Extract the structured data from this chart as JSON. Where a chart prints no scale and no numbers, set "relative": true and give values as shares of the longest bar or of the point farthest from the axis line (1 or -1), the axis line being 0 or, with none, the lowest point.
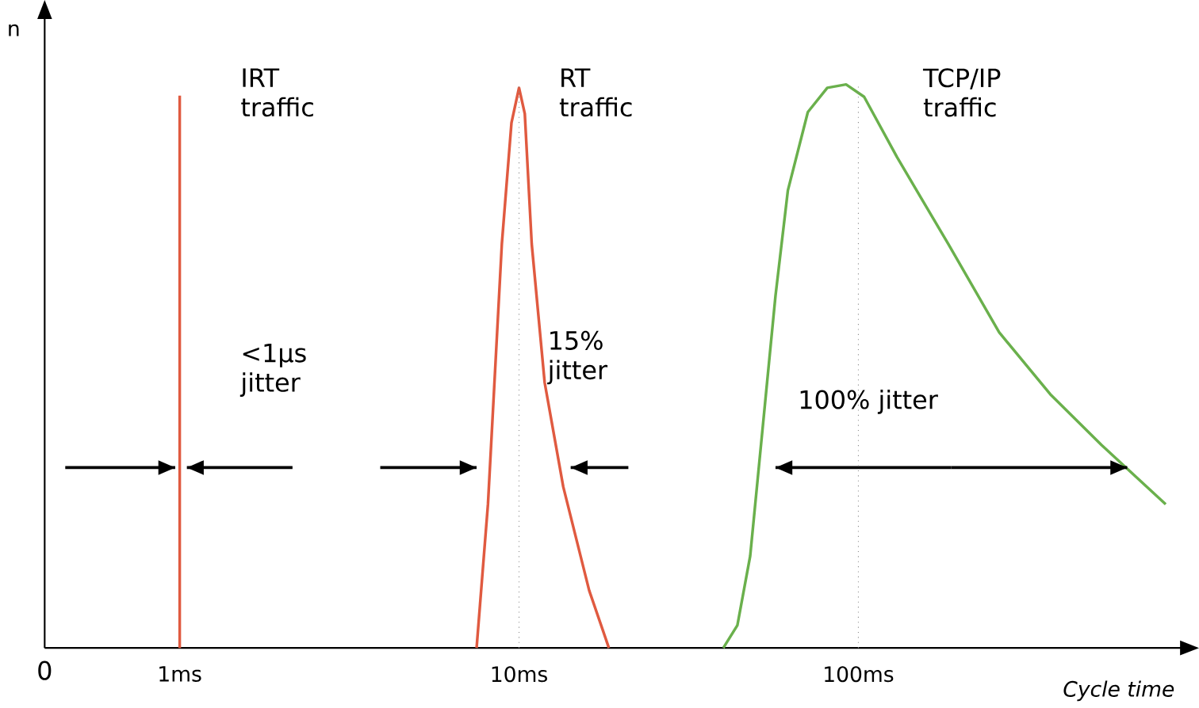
{
  "chart_data": {
    "type": "line",
    "relative": true,
    "log": "x",
    "xlabel": "Cycle time",
    "ylabel": "n",
    "xlim": [
      0.4,
      900
    ],
    "xticks": [
      {
        "value": 1,
        "label": "1ms"
      },
      {
        "value": 10,
        "label": "10ms"
      },
      {
        "value": 100,
        "label": "100ms"
      }
    ],
    "series": [
      {
        "color": "#e05a40",
        "x": [
          1,
          1
        ],
        "values": [
          0,
          0.98
        ]
      },
      {
        "color": "#e05a40",
        "x": [
          7.5,
          8.1,
          8.9,
          9.5,
          10,
          10.4,
          10.9,
          11.9,
          13.5,
          16.1,
          18.4
        ],
        "values": [
          0,
          0.255,
          0.717,
          0.932,
          0.994,
          0.948,
          0.717,
          0.471,
          0.286,
          0.102,
          0
        ]
      },
      {
        "color": "#6ab04c",
        "x": [
          40,
          44,
          48,
          52,
          57,
          62,
          71,
          81,
          92,
          104,
          130,
          184,
          260,
          368,
          521,
          805
        ],
        "values": [
          0,
          0.04,
          0.163,
          0.378,
          0.625,
          0.812,
          0.951,
          0.994,
          1.0,
          0.978,
          0.871,
          0.717,
          0.56,
          0.45,
          0.36,
          0.255
        ]
      },
      {
        "color": "#000000",
        "x": [
          0.46,
          0.97
        ],
        "values": [
          0.32,
          0.32
        ]
      },
      {
        "color": "#000000",
        "x": [
          2.15,
          1.05
        ],
        "values": [
          0.32,
          0.32
        ]
      },
      {
        "color": "#000000",
        "x": [
          3.9,
          7.5
        ],
        "values": [
          0.32,
          0.32
        ]
      },
      {
        "color": "#000000",
        "x": [
          21,
          14.2
        ],
        "values": [
          0.32,
          0.32
        ]
      },
      {
        "color": "#000000",
        "x": [
          188,
          57
        ],
        "values": [
          0.32,
          0.32
        ]
      },
      {
        "color": "#000000",
        "x": [
          188,
          620
        ],
        "values": [
          0.32,
          0.32
        ]
      }
    ],
    "ref_lines": [
      {
        "axis": "x",
        "value": 10,
        "color": "#888888",
        "line_style": "dotted"
      },
      {
        "axis": "x",
        "value": 100,
        "color": "#888888",
        "line_style": "dotted"
      }
    ],
    "annotations": [
      "0",
      "IRT traffic",
      "RT traffic",
      "TCP/IP traffic",
      "<1µs jitter",
      "15% jitter",
      "100% jitter"
    ],
    "marker": "none",
    "line_style": "solid"
  }
}
